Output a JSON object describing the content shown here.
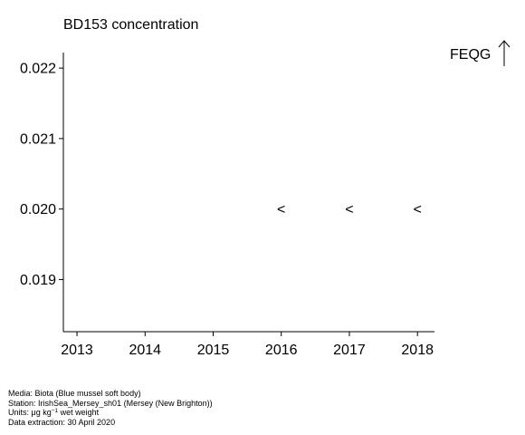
{
  "chart_data": {
    "type": "scatter",
    "title": "BD153 concentration",
    "xlabel": "",
    "ylabel": "",
    "x_ticks": [
      2013,
      2014,
      2015,
      2016,
      2017,
      2018
    ],
    "y_ticks": [
      "0.019",
      "0.020",
      "0.021",
      "0.022"
    ],
    "xlim": [
      2012.8,
      2018.25
    ],
    "ylim": [
      0.01826,
      0.02222
    ],
    "grid": false,
    "series": [
      {
        "marker": "<",
        "points": [
          {
            "x": 2016,
            "y": 0.02
          },
          {
            "x": 2017,
            "y": 0.02
          },
          {
            "x": 2018,
            "y": 0.02
          }
        ]
      }
    ],
    "annotations": [
      {
        "text": "FEQG",
        "symbol": "up-arrow"
      }
    ]
  },
  "footer": {
    "media": "Media: Biota (Blue mussel soft body)",
    "station": "Station: IrishSea_Mersey_sh01 (Mersey (New Brighton))",
    "units_prefix": "Units:  μg kg",
    "units_sup": "−1",
    "units_suffix": " wet weight",
    "extraction": "Data extraction: 30 April 2020"
  }
}
